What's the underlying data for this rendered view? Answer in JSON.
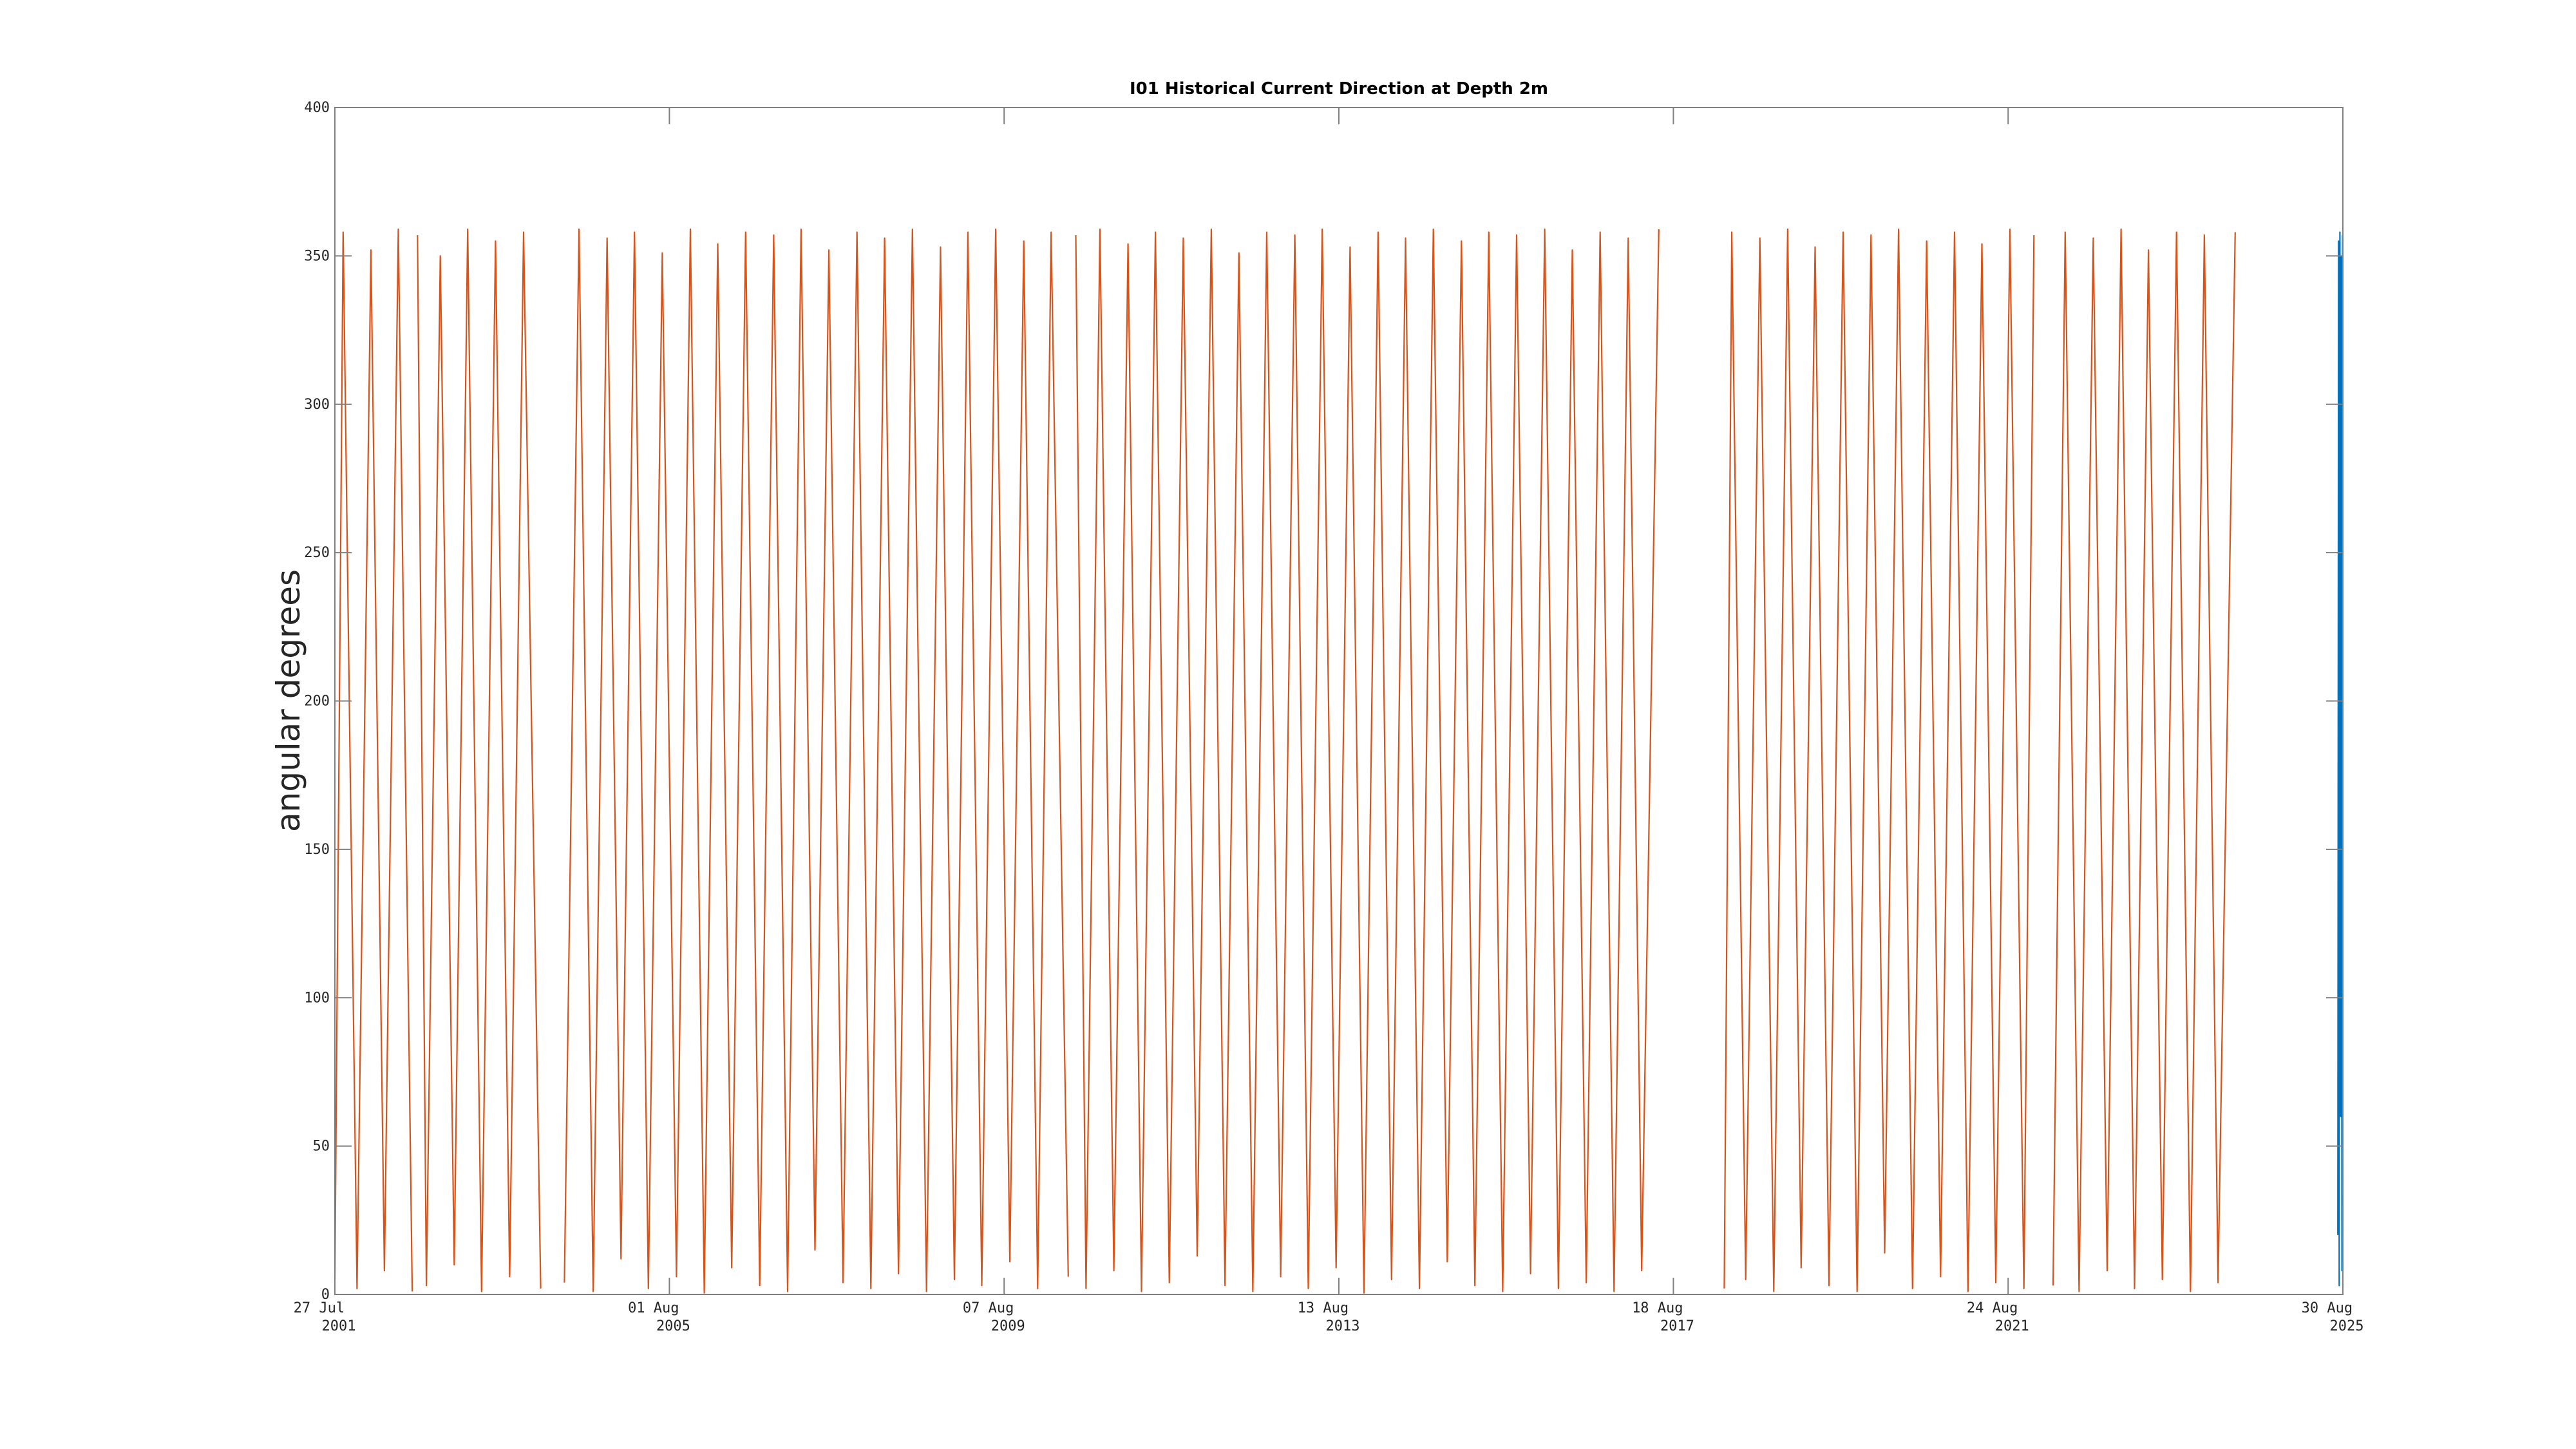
{
  "chart_data": {
    "type": "line",
    "title": "I01 Historical Current Direction at Depth 2m",
    "ylabel": "angular degrees",
    "xlim": [
      "2001-07-27",
      "2025-08-30"
    ],
    "xticks": [
      {
        "value": "2001-07-27",
        "label": "27 Jul 2001"
      },
      {
        "value": "2005-08-01",
        "label": "01 Aug 2005"
      },
      {
        "value": "2009-08-07",
        "label": "07 Aug 2009"
      },
      {
        "value": "2013-08-13",
        "label": "13 Aug 2013"
      },
      {
        "value": "2017-08-18",
        "label": "18 Aug 2017"
      },
      {
        "value": "2021-08-24",
        "label": "24 Aug 2021"
      },
      {
        "value": "2025-08-30",
        "label": "30 Aug 2025"
      }
    ],
    "ylim": [
      0,
      400
    ],
    "yticks": [
      0,
      50,
      100,
      150,
      200,
      250,
      300,
      350,
      400
    ],
    "grid": false,
    "series": [
      {
        "color": "#D95319",
        "x": [
          "2001-07-27",
          "2001-09-01",
          "2001-11-01",
          "2002-01-01",
          "2002-03-01",
          "2002-05-01",
          "2002-07-01",
          "2002-07-12",
          "2002-07-24",
          "2002-09-01",
          "2002-11-01",
          "2003-01-01",
          "2003-03-01",
          "2003-05-01",
          "2003-07-01",
          "2003-09-01",
          "2003-11-01",
          "2004-01-15",
          "2004-03-01",
          "2004-04-28",
          "2004-07-01",
          "2004-09-01",
          "2004-11-01",
          "2005-01-01",
          "2005-03-01",
          "2005-05-01",
          "2005-07-01",
          "2005-09-01",
          "2005-11-01",
          "2006-01-01",
          "2006-03-01",
          "2006-05-01",
          "2006-07-01",
          "2006-09-01",
          "2006-11-01",
          "2007-01-01",
          "2007-03-01",
          "2007-05-01",
          "2007-07-01",
          "2007-09-01",
          "2007-11-01",
          "2008-01-01",
          "2008-03-01",
          "2008-05-01",
          "2008-07-01",
          "2008-09-01",
          "2008-11-01",
          "2009-01-01",
          "2009-03-01",
          "2009-05-01",
          "2009-07-01",
          "2009-09-01",
          "2009-11-01",
          "2010-01-01",
          "2010-03-01",
          "2010-05-15",
          "2010-06-05",
          "2010-06-17",
          "2010-08-01",
          "2010-10-01",
          "2010-12-01",
          "2011-02-01",
          "2011-04-01",
          "2011-06-01",
          "2011-08-01",
          "2011-10-01",
          "2011-12-01",
          "2012-02-01",
          "2012-04-01",
          "2012-06-01",
          "2012-08-01",
          "2012-10-01",
          "2012-12-01",
          "2013-02-01",
          "2013-04-01",
          "2013-06-01",
          "2013-08-01",
          "2013-10-01",
          "2013-12-01",
          "2014-02-01",
          "2014-04-01",
          "2014-06-01",
          "2014-08-01",
          "2014-10-01",
          "2014-12-01",
          "2015-02-01",
          "2015-04-01",
          "2015-06-01",
          "2015-08-01",
          "2015-10-01",
          "2015-12-01",
          "2016-02-01",
          "2016-04-01",
          "2016-06-01",
          "2016-08-01",
          "2016-10-01",
          "2016-12-01",
          "2017-02-01",
          "2017-04-01",
          "2017-06-15",
          "2017-10-01",
          "2018-03-29",
          "2018-05-01",
          "2018-07-01",
          "2018-09-01",
          "2018-11-01",
          "2019-01-01",
          "2019-03-01",
          "2019-05-01",
          "2019-07-01",
          "2019-09-01",
          "2019-11-01",
          "2020-01-01",
          "2020-03-01",
          "2020-05-01",
          "2020-07-01",
          "2020-09-01",
          "2020-11-01",
          "2021-01-01",
          "2021-03-01",
          "2021-05-01",
          "2021-07-01",
          "2021-09-01",
          "2021-11-01",
          "2021-12-15",
          "2022-01-20",
          "2022-03-09",
          "2022-05-01",
          "2022-07-01",
          "2022-09-01",
          "2022-11-01",
          "2023-01-01",
          "2023-03-01",
          "2023-05-01",
          "2023-07-01",
          "2023-09-01",
          "2023-11-01",
          "2024-01-01",
          "2024-03-01",
          "2024-05-15"
        ],
        "values": [
          5,
          358,
          2,
          352,
          8,
          359,
          1,
          null,
          357,
          3,
          350,
          10,
          359,
          1,
          355,
          6,
          358,
          2,
          null,
          4,
          359,
          1,
          356,
          12,
          358,
          2,
          351,
          6,
          359,
          0.5,
          354,
          9,
          358,
          3,
          357,
          1,
          359,
          15,
          352,
          4,
          358,
          2,
          356,
          7,
          359,
          1,
          353,
          5,
          358,
          3,
          359,
          11,
          355,
          2,
          358,
          6,
          null,
          357,
          2,
          359,
          8,
          354,
          1,
          358,
          4,
          356,
          13,
          359,
          3,
          351,
          1,
          358,
          6,
          357,
          2,
          359,
          9,
          353,
          0.5,
          358,
          5,
          356,
          2,
          359,
          11,
          355,
          3,
          358,
          1,
          357,
          7,
          359,
          2,
          352,
          4,
          358,
          1,
          356,
          8,
          359,
          null,
          2,
          358,
          5,
          356,
          1,
          359,
          9,
          353,
          3,
          358,
          1,
          357,
          14,
          359,
          2,
          355,
          6,
          358,
          1,
          354,
          4,
          359,
          2,
          357,
          null,
          3,
          358,
          1,
          356,
          8,
          359,
          2,
          352,
          5,
          358,
          1,
          357,
          4,
          358
        ]
      },
      {
        "color": "#0072BD",
        "x": [
          "2025-08-08",
          "2025-08-11",
          "2025-08-14",
          "2025-08-17",
          "2025-08-20",
          "2025-08-23",
          "2025-08-26",
          "2025-08-29"
        ],
        "values": [
          20,
          355,
          3,
          358,
          60,
          350,
          8,
          357
        ]
      }
    ]
  }
}
